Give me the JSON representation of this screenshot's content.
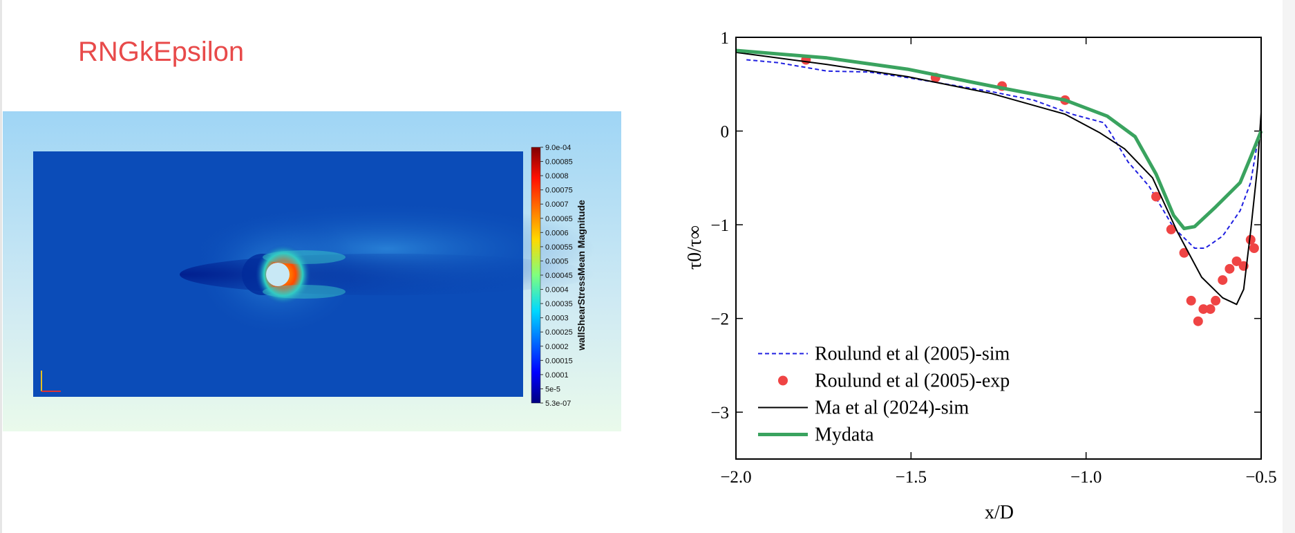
{
  "slide_title": "RNGkEpsilon",
  "contour": {
    "colorbar_label": "wallShearStressMean Magnitude",
    "colorbar_ticks": [
      "9.0e-04",
      "0.00085",
      "0.0008",
      "0.00075",
      "0.0007",
      "0.00065",
      "0.0006",
      "0.00055",
      "0.0005",
      "0.00045",
      "0.0004",
      "0.00035",
      "0.0003",
      "0.00025",
      "0.0002",
      "0.00015",
      "0.0001",
      "5e-5",
      "5.3e-07"
    ]
  },
  "chart_data": {
    "type": "line",
    "xlabel": "x/D",
    "ylabel": "τ0/τ∞",
    "xlim": [
      -2.0,
      -0.5
    ],
    "ylim": [
      -3.5,
      1
    ],
    "xticks": [
      {
        "value": -2.0,
        "label": "−2.0"
      },
      {
        "value": -1.5,
        "label": "−1.5"
      },
      {
        "value": -1.0,
        "label": "−1.0"
      },
      {
        "value": -0.5,
        "label": "−0.5"
      }
    ],
    "yticks": [
      1,
      0,
      {
        "value": -1,
        "label": "−1"
      },
      {
        "value": -2,
        "label": "−2"
      },
      {
        "value": -3,
        "label": "−3"
      }
    ],
    "legend": "lower left",
    "series": [
      {
        "name": "Roulund et al (2005)-sim",
        "color": "#1f1fe0",
        "style": "dashed",
        "x": [
          -1.97,
          -1.88,
          -1.74,
          -1.62,
          -1.51,
          -1.27,
          -1.15,
          -1.04,
          -0.95,
          -0.93,
          -0.88,
          -0.82,
          -0.75,
          -0.69,
          -0.66,
          -0.61,
          -0.56,
          -0.53,
          -0.51
        ],
        "values": [
          0.76,
          0.73,
          0.64,
          0.63,
          0.57,
          0.42,
          0.33,
          0.18,
          0.09,
          -0.02,
          -0.33,
          -0.59,
          -1.03,
          -1.25,
          -1.25,
          -1.12,
          -0.85,
          -0.55,
          -0.11
        ]
      },
      {
        "name": "Roulund et al (2005)-exp",
        "color": "#ef4444",
        "style": "markers",
        "x": [
          -1.8,
          -1.43,
          -1.24,
          -1.06,
          -0.8,
          -0.757,
          -0.72,
          -0.7,
          -0.68,
          -0.665,
          -0.645,
          -0.63,
          -0.61,
          -0.59,
          -0.57,
          -0.55,
          -0.53,
          -0.52
        ],
        "values": [
          0.76,
          0.57,
          0.48,
          0.33,
          -0.7,
          -1.05,
          -1.3,
          -1.81,
          -2.03,
          -1.9,
          -1.9,
          -1.81,
          -1.59,
          -1.47,
          -1.39,
          -1.44,
          -1.16,
          -1.25
        ]
      },
      {
        "name": "Ma et al (2024)-sim",
        "color": "#000000",
        "style": "solid",
        "x": [
          -2.0,
          -1.74,
          -1.51,
          -1.27,
          -1.06,
          -0.96,
          -0.89,
          -0.81,
          -0.74,
          -0.67,
          -0.61,
          -0.57,
          -0.55,
          -0.53,
          -0.51,
          -0.5
        ],
        "values": [
          0.84,
          0.71,
          0.58,
          0.4,
          0.18,
          -0.02,
          -0.19,
          -0.5,
          -1.07,
          -1.56,
          -1.78,
          -1.85,
          -1.69,
          -1.07,
          -0.37,
          0.2
        ]
      },
      {
        "name": "Mydata",
        "color": "#3aa35f",
        "style": "thick",
        "x": [
          -2.0,
          -1.74,
          -1.51,
          -1.27,
          -1.06,
          -0.94,
          -0.86,
          -0.8,
          -0.75,
          -0.72,
          -0.69,
          -0.63,
          -0.56,
          -0.53,
          -0.5
        ],
        "values": [
          0.86,
          0.78,
          0.66,
          0.48,
          0.33,
          0.16,
          -0.06,
          -0.46,
          -0.9,
          -1.04,
          -1.02,
          -0.81,
          -0.55,
          -0.28,
          0.0
        ]
      }
    ]
  }
}
